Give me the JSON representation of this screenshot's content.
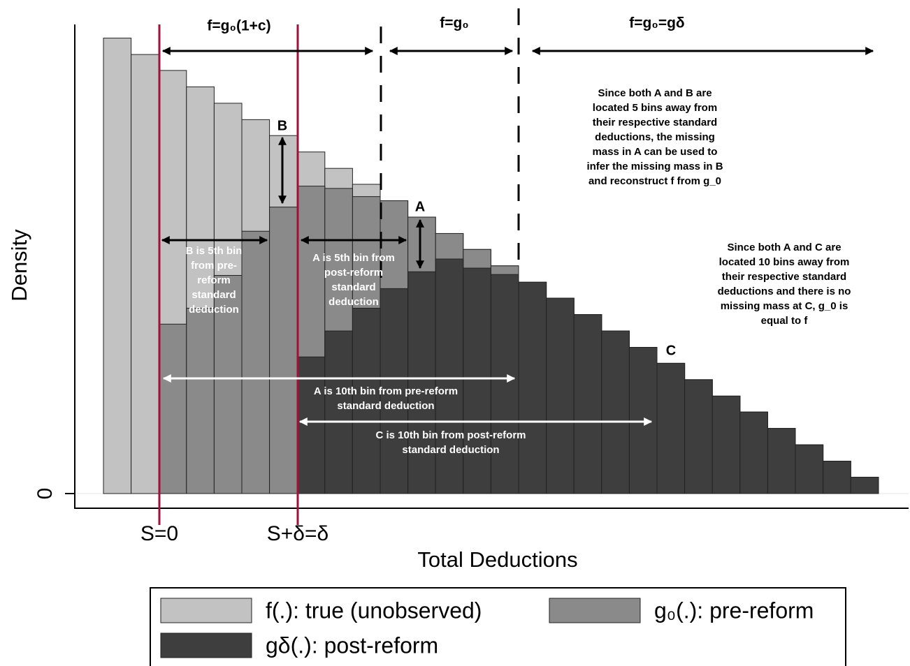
{
  "chart_data": {
    "type": "bar",
    "categories": [
      null,
      null,
      null,
      null,
      null,
      null,
      null,
      null,
      null,
      null,
      null,
      null,
      null,
      null,
      null,
      null,
      null,
      null,
      null,
      null,
      null,
      null,
      null,
      null,
      null,
      null,
      null,
      null
    ],
    "series": [
      {
        "name": "f(.): true (unobserved)",
        "color": "#c2c2c2",
        "values": [
          100,
          96.4,
          92.9,
          89.3,
          85.7,
          82.1,
          78.6,
          75.0,
          71.4,
          67.9,
          64.3,
          60.7,
          57.1,
          53.6,
          50.0,
          46.4,
          42.9,
          39.3,
          35.7,
          32.1,
          28.6,
          25.0,
          21.4,
          17.9,
          14.3,
          10.7,
          7.1,
          3.6
        ]
      },
      {
        "name": "g₀(.): pre-reform",
        "color": "#8a8a8a",
        "values": [
          null,
          null,
          37.2,
          40.7,
          47.9,
          57.6,
          62.9,
          67.5,
          67.0,
          65.2,
          64.3,
          60.7,
          57.1,
          53.6,
          50.0,
          46.4,
          42.9,
          39.3,
          35.7,
          32.1,
          28.6,
          25.0,
          21.4,
          17.9,
          14.3,
          10.7,
          7.1,
          3.6
        ]
      },
      {
        "name": "gδ(.): post-reform",
        "color": "#3e3e3e",
        "values": [
          null,
          null,
          null,
          null,
          null,
          null,
          null,
          30.0,
          35.7,
          40.7,
          45.0,
          48.7,
          51.5,
          49.5,
          48.1,
          46.4,
          42.9,
          39.3,
          35.7,
          32.1,
          28.6,
          25.0,
          21.4,
          17.9,
          14.3,
          10.7,
          7.1,
          3.6
        ]
      }
    ],
    "ylim": [
      0,
      103
    ],
    "yticks": [
      0
    ],
    "y_label": "Density",
    "x_label": "Total Deductions",
    "x_markers": [
      "S=0",
      "S+δ=δ"
    ],
    "region_labels": [
      "f=g₀(1+c)",
      "f=g₀",
      "f=g₀=gδ"
    ],
    "point_labels": [
      "B",
      "A",
      "C"
    ],
    "annotations": [
      [
        "B is 5th bin",
        "from pre-",
        "reform",
        "standard",
        "deduction"
      ],
      [
        "A is 5th bin from",
        "post-reform",
        "standard",
        "deduction"
      ],
      [
        "A is 10th bin from pre-reform",
        "standard deduction"
      ],
      [
        "C is 10th bin from post-reform",
        "standard deduction"
      ],
      [
        "Since both A and B are",
        "located 5 bins away from",
        "their respective standard",
        "deductions, the missing",
        "mass in A can be used to",
        "infer the missing mass in B",
        "and reconstruct f from g_0"
      ],
      [
        "Since both A and C are",
        "located 10 bins away from",
        "their respective standard",
        "deductions and there is no",
        "missing mass at C, g_0 is",
        "equal to f"
      ]
    ]
  }
}
